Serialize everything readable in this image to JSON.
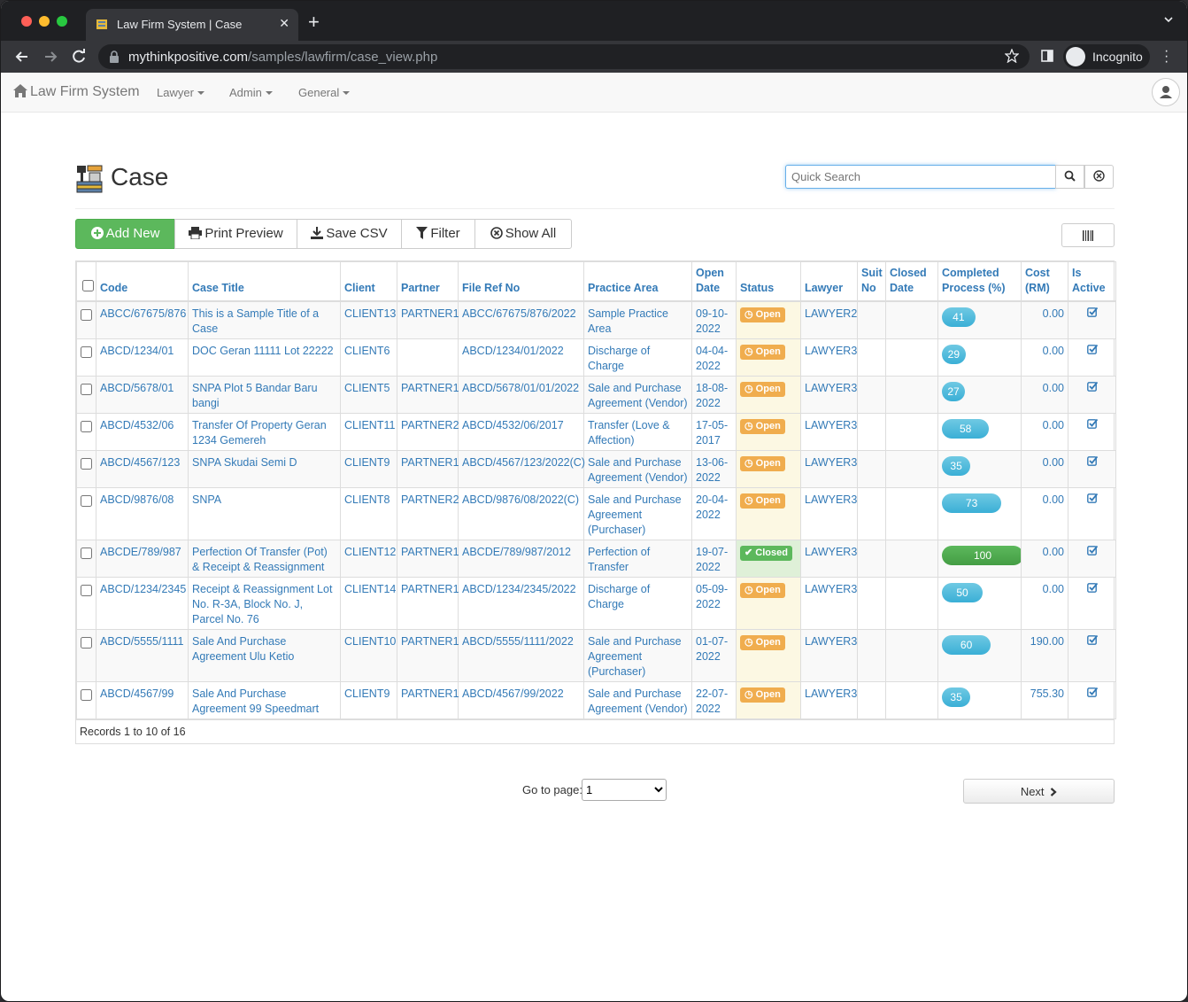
{
  "browser": {
    "tab_title": "Law Firm System | Case",
    "url_host": "mythinkpositive.com",
    "url_path": "/samples/lawfirm/case_view.php",
    "profile_label": "Incognito"
  },
  "navbar": {
    "brand": "Law Firm System",
    "menus": [
      "Lawyer",
      "Admin",
      "General"
    ]
  },
  "page": {
    "title": "Case",
    "search_placeholder": "Quick Search"
  },
  "toolbar": {
    "add_new": "Add New",
    "print_preview": "Print Preview",
    "save_csv": "Save CSV",
    "filter": "Filter",
    "show_all": "Show All"
  },
  "table": {
    "headers": {
      "code": "Code",
      "case_title": "Case Title",
      "client": "Client",
      "partner": "Partner",
      "file_ref_no": "File Ref No",
      "practice_area": "Practice Area",
      "open_date": "Open Date",
      "status": "Status",
      "lawyer": "Lawyer",
      "suit_no": "Suit No",
      "closed_date": "Closed Date",
      "completed": "Completed Process (%)",
      "cost": "Cost (RM)",
      "is_active": "Is Active"
    },
    "rows": [
      {
        "code": "ABCC/67675/876",
        "title": "This is a Sample Title of a Case",
        "client": "CLIENT13",
        "partner": "PARTNER1",
        "ref": "ABCC/67675/876/2022",
        "area": "Sample Practice Area",
        "open_date": "09-10-2022",
        "status": "Open",
        "lawyer": "LAWYER2",
        "suit_no": "",
        "closed_date": "",
        "completed": 41,
        "cost": "0.00"
      },
      {
        "code": "ABCD/1234/01",
        "title": "DOC Geran 11111 Lot 22222",
        "client": "CLIENT6",
        "partner": "",
        "ref": "ABCD/1234/01/2022",
        "area": "Discharge of Charge",
        "open_date": "04-04-2022",
        "status": "Open",
        "lawyer": "LAWYER3",
        "suit_no": "",
        "closed_date": "",
        "completed": 29,
        "cost": "0.00"
      },
      {
        "code": "ABCD/5678/01",
        "title": "SNPA Plot 5 Bandar Baru bangi",
        "client": "CLIENT5",
        "partner": "PARTNER1",
        "ref": "ABCD/5678/01/01/2022",
        "area": "Sale and Purchase Agreement (Vendor)",
        "open_date": "18-08-2022",
        "status": "Open",
        "lawyer": "LAWYER3",
        "suit_no": "",
        "closed_date": "",
        "completed": 27,
        "cost": "0.00"
      },
      {
        "code": "ABCD/4532/06",
        "title": "Transfer Of Property Geran 1234 Gemereh",
        "client": "CLIENT11",
        "partner": "PARTNER2",
        "ref": "ABCD/4532/06/2017",
        "area": "Transfer (Love & Affection)",
        "open_date": "17-05-2017",
        "status": "Open",
        "lawyer": "LAWYER3",
        "suit_no": "",
        "closed_date": "",
        "completed": 58,
        "cost": "0.00"
      },
      {
        "code": "ABCD/4567/123",
        "title": "SNPA Skudai Semi D",
        "client": "CLIENT9",
        "partner": "PARTNER1",
        "ref": "ABCD/4567/123/2022(C)",
        "area": "Sale and Purchase Agreement (Vendor)",
        "open_date": "13-06-2022",
        "status": "Open",
        "lawyer": "LAWYER3",
        "suit_no": "",
        "closed_date": "",
        "completed": 35,
        "cost": "0.00"
      },
      {
        "code": "ABCD/9876/08",
        "title": "SNPA",
        "client": "CLIENT8",
        "partner": "PARTNER2",
        "ref": "ABCD/9876/08/2022(C)",
        "area": "Sale and Purchase Agreement (Purchaser)",
        "open_date": "20-04-2022",
        "status": "Open",
        "lawyer": "LAWYER3",
        "suit_no": "",
        "closed_date": "",
        "completed": 73,
        "cost": "0.00"
      },
      {
        "code": "ABCDE/789/987",
        "title": "Perfection Of Transfer (Pot) & Receipt & Reassignment",
        "client": "CLIENT12",
        "partner": "PARTNER1",
        "ref": "ABCDE/789/987/2012",
        "area": "Perfection of Transfer",
        "open_date": "19-07-2022",
        "status": "Closed",
        "lawyer": "LAWYER3",
        "suit_no": "",
        "closed_date": "",
        "completed": 100,
        "cost": "0.00"
      },
      {
        "code": "ABCD/1234/2345",
        "title": "Receipt & Reassignment Lot No. R-3A, Block No. J, Parcel No. 76",
        "client": "CLIENT14",
        "partner": "PARTNER1",
        "ref": "ABCD/1234/2345/2022",
        "area": "Discharge of Charge",
        "open_date": "05-09-2022",
        "status": "Open",
        "lawyer": "LAWYER3",
        "suit_no": "",
        "closed_date": "",
        "completed": 50,
        "cost": "0.00"
      },
      {
        "code": "ABCD/5555/1111",
        "title": "Sale And Purchase Agreement Ulu Ketio",
        "client": "CLIENT10",
        "partner": "PARTNER1",
        "ref": "ABCD/5555/1111/2022",
        "area": "Sale and Purchase Agreement (Purchaser)",
        "open_date": "01-07-2022",
        "status": "Open",
        "lawyer": "LAWYER3",
        "suit_no": "",
        "closed_date": "",
        "completed": 60,
        "cost": "190.00"
      },
      {
        "code": "ABCD/4567/99",
        "title": "Sale And Purchase Agreement 99 Speedmart",
        "client": "CLIENT9",
        "partner": "PARTNER1",
        "ref": "ABCD/4567/99/2022",
        "area": "Sale and Purchase Agreement (Vendor)",
        "open_date": "22-07-2022",
        "status": "Open",
        "lawyer": "LAWYER3",
        "suit_no": "",
        "closed_date": "",
        "completed": 35,
        "cost": "755.30"
      }
    ],
    "records_summary": "Records 1 to 10 of 16"
  },
  "pager": {
    "goto_label": "Go to page:",
    "page_value": "1",
    "next_label": "Next"
  },
  "colors": {
    "link": "#337ab7",
    "open_badge": "#f0ad4e",
    "closed_badge": "#5cb85c",
    "progress": "#5bc0de",
    "add_button": "#5cb85c"
  }
}
